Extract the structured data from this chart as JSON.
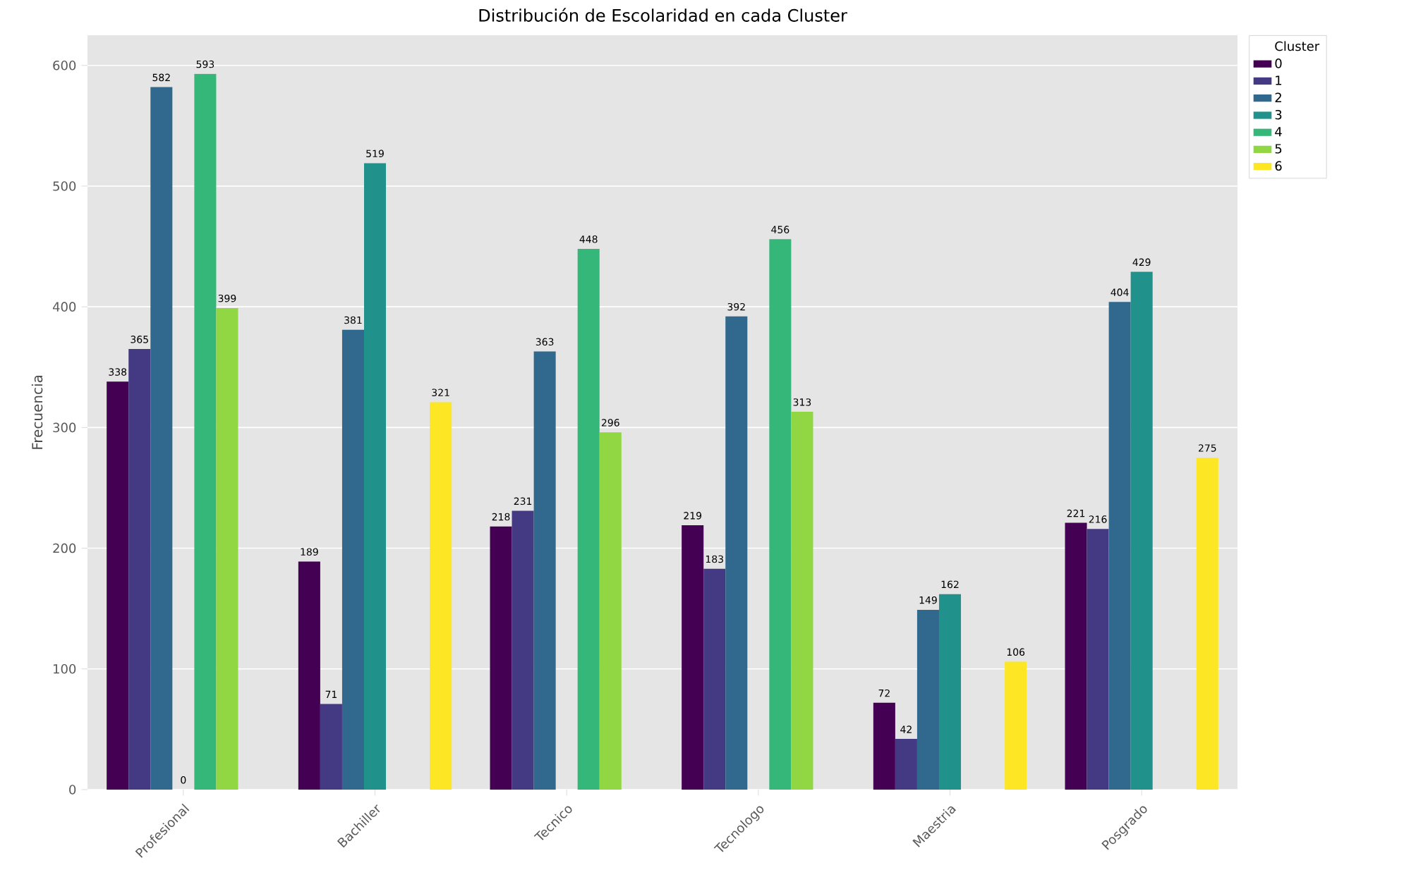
{
  "chart_data": {
    "type": "bar",
    "title": "Distribución de Escolaridad en cada Cluster",
    "ylabel": "Frecuencia",
    "legend_title": "Cluster",
    "categories": [
      "Profesional",
      "Bachiller",
      "Tecnico",
      "Tecnologo",
      "Maestria",
      "Posgrado"
    ],
    "series": [
      {
        "name": "0",
        "color": "#440154",
        "values": [
          338,
          189,
          218,
          219,
          72,
          221
        ]
      },
      {
        "name": "1",
        "color": "#443983",
        "values": [
          365,
          71,
          231,
          183,
          42,
          216
        ]
      },
      {
        "name": "2",
        "color": "#31688e",
        "values": [
          582,
          381,
          363,
          392,
          149,
          404
        ]
      },
      {
        "name": "3",
        "color": "#21918c",
        "values": [
          0,
          519,
          null,
          null,
          162,
          429
        ]
      },
      {
        "name": "4",
        "color": "#35b779",
        "values": [
          593,
          null,
          448,
          456,
          null,
          null
        ]
      },
      {
        "name": "5",
        "color": "#90d743",
        "values": [
          399,
          null,
          296,
          313,
          null,
          null
        ]
      },
      {
        "name": "6",
        "color": "#fde725",
        "values": [
          null,
          321,
          null,
          null,
          106,
          275
        ]
      }
    ],
    "ylim": [
      0,
      625
    ],
    "yticks": [
      0,
      100,
      200,
      300,
      400,
      500,
      600
    ],
    "grid": "y",
    "legend": "top right",
    "data_labels": true
  }
}
